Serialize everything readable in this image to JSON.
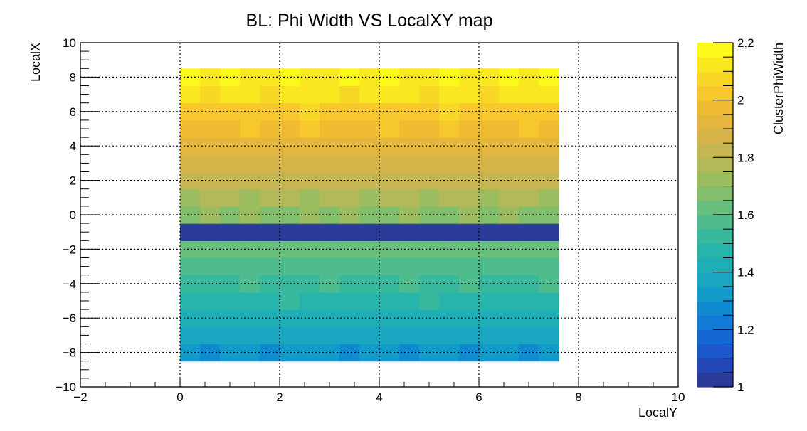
{
  "chart_data": {
    "type": "heatmap",
    "title": "BL: Phi Width VS LocalXY map",
    "xlabel": "LocalY",
    "ylabel": "LocalX",
    "zlabel": "ClusterPhiWidth",
    "xlim": [
      -2,
      10
    ],
    "ylim": [
      -10,
      10
    ],
    "zlim": [
      1,
      2.2
    ],
    "x_ticks": [
      "−2",
      "0",
      "2",
      "4",
      "6",
      "8",
      "10"
    ],
    "x_tick_values": [
      -2,
      0,
      2,
      4,
      6,
      8,
      10
    ],
    "y_ticks": [
      "−10",
      "−8",
      "−6",
      "−4",
      "−2",
      "0",
      "2",
      "4",
      "6",
      "8",
      "10"
    ],
    "y_tick_values": [
      -10,
      -8,
      -6,
      -4,
      -2,
      0,
      2,
      4,
      6,
      8,
      10
    ],
    "z_ticks": [
      "1",
      "1.2",
      "1.4",
      "1.6",
      "1.8",
      "2",
      "2.2"
    ],
    "z_tick_values": [
      1,
      1.2,
      1.4,
      1.6,
      1.8,
      2,
      2.2
    ],
    "grid": true,
    "colormap": "parula",
    "colors": [
      "#2b3b9a",
      "#2347b5",
      "#1a56cc",
      "#1468d4",
      "#117ad6",
      "#0f8ad0",
      "#129bc9",
      "#18a6c1",
      "#1faeb6",
      "#27b4aa",
      "#38b89c",
      "#4ebc8c",
      "#68be7c",
      "#82be6c",
      "#9cbc60",
      "#b3b858",
      "#c6b553",
      "#d6b44a",
      "#e5b63e",
      "#f0bd32",
      "#f6c82b",
      "#f9d726",
      "#f9e720",
      "#fbf91a"
    ],
    "x_bins": {
      "start": 0,
      "end": 7.6,
      "count": 19
    },
    "y_bins": {
      "start": -8.5,
      "end": 8.5,
      "count": 17
    },
    "values": [
      [
        1.31,
        1.29,
        1.3,
        1.3,
        1.29,
        1.3,
        1.32,
        1.3,
        1.29,
        1.31,
        1.3,
        1.29,
        1.3,
        1.31,
        1.29,
        1.3,
        1.31,
        1.29,
        1.31
      ],
      [
        1.37,
        1.36,
        1.37,
        1.35,
        1.38,
        1.37,
        1.36,
        1.36,
        1.37,
        1.38,
        1.36,
        1.37,
        1.35,
        1.37,
        1.36,
        1.38,
        1.36,
        1.37,
        1.36
      ],
      [
        1.42,
        1.43,
        1.42,
        1.44,
        1.42,
        1.43,
        1.41,
        1.42,
        1.43,
        1.42,
        1.44,
        1.42,
        1.43,
        1.42,
        1.41,
        1.43,
        1.42,
        1.44,
        1.42
      ],
      [
        1.48,
        1.48,
        1.49,
        1.47,
        1.48,
        1.5,
        1.48,
        1.49,
        1.47,
        1.48,
        1.49,
        1.48,
        1.5,
        1.47,
        1.49,
        1.48,
        1.48,
        1.49,
        1.48
      ],
      [
        1.54,
        1.53,
        1.54,
        1.55,
        1.53,
        1.54,
        1.53,
        1.55,
        1.54,
        1.53,
        1.54,
        1.55,
        1.53,
        1.54,
        1.55,
        1.53,
        1.54,
        1.53,
        1.55
      ],
      [
        1.57,
        1.58,
        1.59,
        1.57,
        1.58,
        1.59,
        1.57,
        1.59,
        1.58,
        1.57,
        1.58,
        1.59,
        1.57,
        1.58,
        1.59,
        1.57,
        1.58,
        1.59,
        1.57
      ],
      [
        1.62,
        1.63,
        1.62,
        1.64,
        1.63,
        1.62,
        1.63,
        1.62,
        1.64,
        1.63,
        1.62,
        1.63,
        1.64,
        1.62,
        1.63,
        1.62,
        1.63,
        1.64,
        1.62
      ],
      [
        1.0,
        1.0,
        1.0,
        1.0,
        1.0,
        1.0,
        1.0,
        1.0,
        1.0,
        1.0,
        1.0,
        1.0,
        1.0,
        1.0,
        1.0,
        1.0,
        1.0,
        1.0,
        1.0
      ],
      [
        1.69,
        1.71,
        1.7,
        1.71,
        1.69,
        1.7,
        1.72,
        1.7,
        1.71,
        1.69,
        1.7,
        1.71,
        1.7,
        1.69,
        1.71,
        1.7,
        1.72,
        1.7,
        1.69
      ],
      [
        1.75,
        1.77,
        1.76,
        1.75,
        1.77,
        1.76,
        1.75,
        1.77,
        1.76,
        1.75,
        1.76,
        1.77,
        1.75,
        1.76,
        1.77,
        1.75,
        1.76,
        1.77,
        1.75
      ],
      [
        1.81,
        1.82,
        1.81,
        1.83,
        1.82,
        1.81,
        1.83,
        1.82,
        1.81,
        1.82,
        1.83,
        1.81,
        1.82,
        1.81,
        1.83,
        1.82,
        1.81,
        1.82,
        1.83
      ],
      [
        1.88,
        1.87,
        1.88,
        1.87,
        1.89,
        1.88,
        1.87,
        1.88,
        1.89,
        1.87,
        1.88,
        1.87,
        1.89,
        1.88,
        1.87,
        1.88,
        1.87,
        1.89,
        1.88
      ],
      [
        1.93,
        1.93,
        1.94,
        1.93,
        1.92,
        1.94,
        1.93,
        1.94,
        1.92,
        1.93,
        1.94,
        1.93,
        1.92,
        1.94,
        1.93,
        1.94,
        1.93,
        1.92,
        1.94
      ],
      [
        1.98,
        1.99,
        1.98,
        2.0,
        1.99,
        1.98,
        2.0,
        1.99,
        1.98,
        1.99,
        2.0,
        1.98,
        1.99,
        2.0,
        1.98,
        1.99,
        1.98,
        2.0,
        1.99
      ],
      [
        2.04,
        2.05,
        2.04,
        2.03,
        2.05,
        2.04,
        2.06,
        2.04,
        2.05,
        2.03,
        2.04,
        2.05,
        2.04,
        2.06,
        2.04,
        2.05,
        2.03,
        2.04,
        2.05
      ],
      [
        2.1,
        2.09,
        2.11,
        2.1,
        2.09,
        2.11,
        2.1,
        2.11,
        2.09,
        2.1,
        2.11,
        2.1,
        2.09,
        2.11,
        2.1,
        2.09,
        2.11,
        2.1,
        2.12
      ],
      [
        2.2,
        2.15,
        2.16,
        2.14,
        2.15,
        2.16,
        2.15,
        2.14,
        2.16,
        2.15,
        2.16,
        2.14,
        2.15,
        2.16,
        2.15,
        2.14,
        2.16,
        2.15,
        2.19
      ]
    ]
  }
}
